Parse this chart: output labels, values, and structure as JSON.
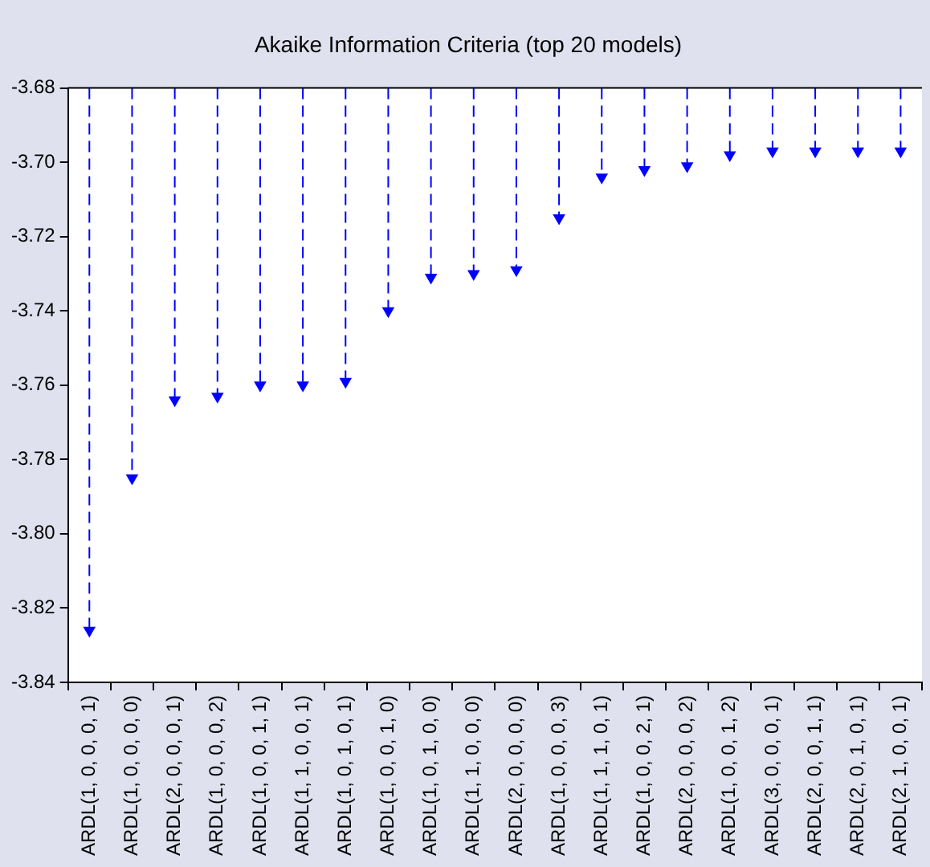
{
  "chart_data": {
    "type": "lollipop",
    "title": "Akaike Information Criteria (top 20 models)",
    "categories": [
      "ARDL(1, 0, 0, 0, 1)",
      "ARDL(1, 0, 0, 0, 0)",
      "ARDL(2, 0, 0, 0, 1)",
      "ARDL(1, 0, 0, 0, 2)",
      "ARDL(1, 0, 0, 1, 1)",
      "ARDL(1, 1, 0, 0, 1)",
      "ARDL(1, 0, 1, 0, 1)",
      "ARDL(1, 0, 0, 1, 0)",
      "ARDL(1, 0, 1, 0, 0)",
      "ARDL(1, 1, 0, 0, 0)",
      "ARDL(2, 0, 0, 0, 0)",
      "ARDL(1, 0, 0, 0, 3)",
      "ARDL(1, 1, 1, 0, 1)",
      "ARDL(1, 0, 0, 2, 1)",
      "ARDL(2, 0, 0, 0, 2)",
      "ARDL(1, 0, 0, 1, 2)",
      "ARDL(3, 0, 0, 0, 1)",
      "ARDL(2, 0, 0, 1, 1)",
      "ARDL(2, 0, 1, 0, 1)",
      "ARDL(2, 1, 0, 0, 1)"
    ],
    "values": [
      -3.826,
      -3.785,
      -3.764,
      -3.763,
      -3.76,
      -3.76,
      -3.759,
      -3.74,
      -3.731,
      -3.73,
      -3.729,
      -3.715,
      -3.704,
      -3.702,
      -3.701,
      -3.698,
      -3.697,
      -3.697,
      -3.697,
      -3.697
    ],
    "color": "#0000ff",
    "marker": "triangle",
    "line_style": "dashed",
    "ylim": [
      -3.84,
      -3.68
    ],
    "yticks": [
      {
        "value": -3.84,
        "label": "-3.84"
      },
      {
        "value": -3.82,
        "label": "-3.82"
      },
      {
        "value": -3.8,
        "label": "-3.80"
      },
      {
        "value": -3.78,
        "label": "-3.78"
      },
      {
        "value": -3.76,
        "label": "-3.76"
      },
      {
        "value": -3.74,
        "label": "-3.74"
      },
      {
        "value": -3.72,
        "label": "-3.72"
      },
      {
        "value": -3.7,
        "label": "-3.70"
      },
      {
        "value": -3.68,
        "label": "-3.68"
      }
    ]
  }
}
